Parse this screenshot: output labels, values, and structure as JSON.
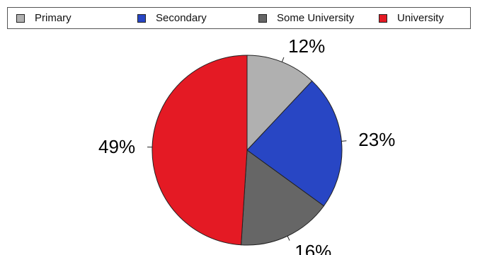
{
  "chart_data": {
    "type": "pie",
    "title": "",
    "legend_position": "top",
    "slices": [
      {
        "name": "Primary",
        "value": 12,
        "label": "12%",
        "color": "#b0b0b0"
      },
      {
        "name": "Secondary",
        "value": 23,
        "label": "23%",
        "color": "#2846c4"
      },
      {
        "name": "Some University",
        "value": 16,
        "label": "16%",
        "color": "#666666"
      },
      {
        "name": "University",
        "value": 49,
        "label": "49%",
        "color": "#e41a24"
      }
    ]
  }
}
